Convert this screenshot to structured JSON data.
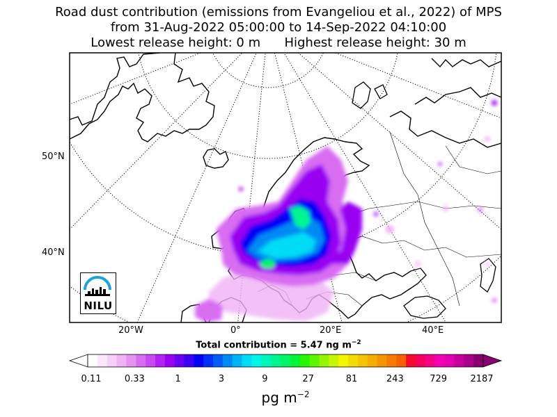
{
  "title": {
    "line1": "Road dust contribution (emissions from Evangeliou et al., 2022) of MPS",
    "line2": "from 31-Aug-2022 05:00:00 to 14-Sep-2022 04:10:00",
    "line3": "Lowest release height: 0 m      Highest release height: 30 m"
  },
  "map": {
    "lat_labels": [
      "50°N",
      "40°N"
    ],
    "lon_labels": [
      "20°W",
      "0°",
      "20°E",
      "40°E"
    ]
  },
  "logo": {
    "text": "NILU",
    "accent_color": "#1aa3dc"
  },
  "total": {
    "prefix": "Total contribution = 5.47 ng m",
    "exponent": "−2"
  },
  "colorbar": {
    "ticks": [
      "0.11",
      "0.33",
      "1",
      "3",
      "9",
      "27",
      "81",
      "243",
      "729",
      "2187"
    ],
    "unit_base": "pg m",
    "unit_exponent": "−2",
    "colors": [
      "#ffffff",
      "#fbe7fb",
      "#f6cff8",
      "#f0b2f5",
      "#e592f3",
      "#d86df2",
      "#c94af2",
      "#b521f2",
      "#9900f2",
      "#6a00f2",
      "#3d00f2",
      "#0000f5",
      "#0030f5",
      "#005df5",
      "#0089f5",
      "#00b3f5",
      "#00dcf5",
      "#00f5e8",
      "#00f5bd",
      "#00f591",
      "#00f565",
      "#00f538",
      "#24f500",
      "#5cf500",
      "#93f500",
      "#c8f500",
      "#f5f500",
      "#f5dc00",
      "#f5c400",
      "#f5ab00",
      "#f59300",
      "#f57a00",
      "#f56100",
      "#f50a2e",
      "#f5005c",
      "#f50089",
      "#f500b5",
      "#e300b0",
      "#c7009d",
      "#a8008a",
      "#88006f"
    ]
  }
}
